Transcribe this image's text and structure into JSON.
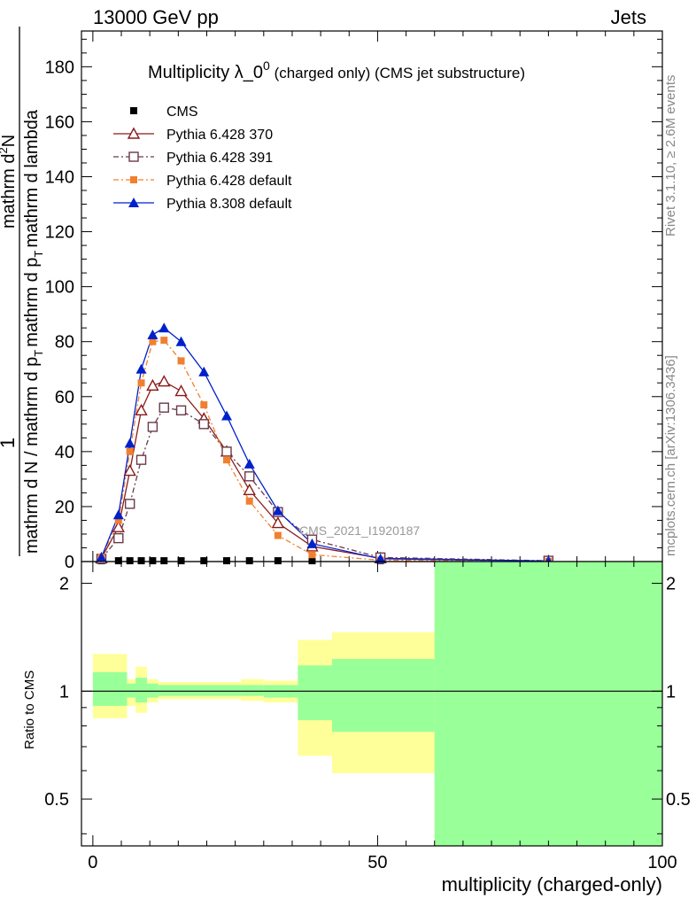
{
  "header": {
    "left": "13000 GeV pp",
    "right": "Jets"
  },
  "side_text": {
    "rivet": "Rivet 3.1.10, ≥ 2.6M events",
    "mcplots": "mcplots.cern.ch [arXiv:1306.3436]"
  },
  "watermark": "CMS_2021_I1920187",
  "title_main": "Multiplicity λ_0",
  "title_sup": "0",
  "title_rest": " (charged only) (CMS jet substructure)",
  "ylabel_top": {
    "numerator": "1",
    "denominator": "mathrm d N / mathrm d p",
    "denominator_sub": "T",
    "denominator_tail": "mathrm d p",
    "denominator_tail_sub": "T",
    "denominator_end": "mathrm d lambda"
  },
  "ylabel_top_second": "mathrm d",
  "ylabel_top_second_sup": "2",
  "ylabel_top_second_tail": "N",
  "ylabel_ratio": "Ratio to CMS",
  "xlabel": "multiplicity (charged-only)",
  "chart_data": [
    {
      "type": "line",
      "title": "Multiplicity λ_0^0 (charged only) (CMS jet substructure)",
      "xlim": [
        -2,
        100
      ],
      "ylim": [
        0,
        193
      ],
      "yticks": [
        0,
        20,
        40,
        60,
        80,
        100,
        120,
        140,
        160,
        180
      ],
      "legend_position": "top-left",
      "series": [
        {
          "name": "CMS",
          "marker": "square-filled",
          "color": "#000000",
          "x": [
            1.5,
            4.5,
            6.5,
            8.5,
            10.5,
            12.5,
            15.5,
            19.5,
            23.5,
            27.5,
            32.5,
            38.5,
            50.5,
            80.0
          ],
          "y": [
            0.3,
            0.3,
            0.3,
            0.3,
            0.3,
            0.3,
            0.3,
            0.3,
            0.3,
            0.3,
            0.3,
            0.3,
            0.3,
            0.3
          ]
        },
        {
          "name": "Pythia 6.428 370",
          "marker": "triangle-open",
          "color": "#8b1a1a",
          "x": [
            1.5,
            4.5,
            6.5,
            8.5,
            10.5,
            12.5,
            15.5,
            19.5,
            23.5,
            27.5,
            32.5,
            38.5,
            50.5,
            80.0
          ],
          "y": [
            1.2,
            12.5,
            33,
            55,
            64,
            65.5,
            62,
            52,
            40,
            26,
            14,
            5.5,
            1.2,
            0.2
          ]
        },
        {
          "name": "Pythia 6.428 391",
          "marker": "square-open",
          "color": "#6b3a4a",
          "x": [
            1.5,
            4.5,
            6.5,
            8.5,
            10.5,
            12.5,
            15.5,
            19.5,
            23.5,
            27.5,
            32.5,
            38.5,
            50.5,
            80.0
          ],
          "y": [
            1.0,
            8.5,
            21,
            37,
            49,
            56,
            55,
            50,
            40,
            31,
            18,
            8,
            1.5,
            0.3
          ]
        },
        {
          "name": "Pythia 6.428 default",
          "marker": "square-filled",
          "color": "#f08030",
          "x": [
            1.5,
            4.5,
            6.5,
            8.5,
            10.5,
            12.5,
            15.5,
            19.5,
            23.5,
            27.5,
            32.5,
            38.5,
            50.5,
            80.0
          ],
          "y": [
            1.5,
            15,
            40,
            65,
            80,
            80.5,
            73,
            57,
            37,
            22,
            9.5,
            2.5,
            0.5,
            0.1
          ]
        },
        {
          "name": "Pythia 8.308 default",
          "marker": "triangle-filled",
          "color": "#0020cc",
          "x": [
            1.5,
            4.5,
            6.5,
            8.5,
            10.5,
            12.5,
            15.5,
            19.5,
            23.5,
            27.5,
            32.5,
            38.5,
            50.5,
            80.0
          ],
          "y": [
            1.5,
            17,
            43,
            70,
            82.5,
            85,
            80,
            69,
            53,
            35.5,
            18.5,
            6.5,
            1.0,
            0.2
          ]
        }
      ]
    },
    {
      "type": "area",
      "ylabel": "Ratio to CMS",
      "xlabel": "multiplicity (charged-only)",
      "xlim": [
        -2,
        100
      ],
      "ylim": [
        0.37,
        2.3
      ],
      "yticks": [
        0.5,
        1,
        2
      ],
      "xticks": [
        0,
        50,
        100
      ],
      "reference_line": 1,
      "bands": [
        {
          "x0": 0,
          "x1": 6,
          "yellow": [
            0.84,
            1.27
          ],
          "green": [
            0.91,
            1.13
          ]
        },
        {
          "x0": 6,
          "x1": 7.5,
          "yellow": [
            0.91,
            1.08
          ],
          "green": [
            0.96,
            1.05
          ]
        },
        {
          "x0": 7.5,
          "x1": 9.5,
          "yellow": [
            0.87,
            1.17
          ],
          "green": [
            0.93,
            1.09
          ]
        },
        {
          "x0": 9.5,
          "x1": 11.5,
          "yellow": [
            0.93,
            1.08
          ],
          "green": [
            0.96,
            1.05
          ]
        },
        {
          "x0": 11.5,
          "x1": 26,
          "yellow": [
            0.95,
            1.06
          ],
          "green": [
            0.97,
            1.04
          ]
        },
        {
          "x0": 26,
          "x1": 30,
          "yellow": [
            0.94,
            1.08
          ],
          "green": [
            0.97,
            1.04
          ]
        },
        {
          "x0": 30,
          "x1": 36,
          "yellow": [
            0.93,
            1.07
          ],
          "green": [
            0.96,
            1.04
          ]
        },
        {
          "x0": 36,
          "x1": 42,
          "yellow": [
            0.66,
            1.39
          ],
          "green": [
            0.83,
            1.18
          ]
        },
        {
          "x0": 42,
          "x1": 60,
          "yellow": [
            0.59,
            1.46
          ],
          "green": [
            0.77,
            1.23
          ]
        },
        {
          "x0": 60,
          "x1": 100,
          "yellow": [
            0.37,
            2.3
          ],
          "green": [
            0.37,
            2.3
          ]
        }
      ]
    }
  ]
}
